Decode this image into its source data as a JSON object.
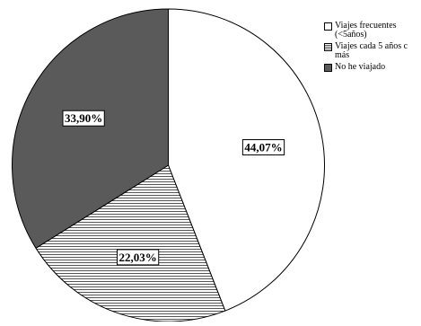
{
  "chart_data": {
    "type": "pie",
    "title": "",
    "start_angle_deg": 0,
    "direction": "clockwise",
    "slices": [
      {
        "label": "Viajes frecuentes (<5años)",
        "value": 44.07,
        "value_label": "44,07%",
        "fill": "#ffffff",
        "pattern": "none"
      },
      {
        "label": "Viajes cada 5 años o más",
        "value": 22.03,
        "value_label": "22,03%",
        "fill": "#ffffff",
        "pattern": "horizontal-lines"
      },
      {
        "label": "No he viajado",
        "value": 33.9,
        "value_label": "33,90%",
        "fill": "#5a5a5a",
        "pattern": "none"
      }
    ],
    "legend_position": "top-right"
  },
  "legend": {
    "items": [
      {
        "label": "Viajes frecuentes (<5años)"
      },
      {
        "label": "Viajes cada 5 años c más"
      },
      {
        "label": "No he viajado"
      }
    ]
  }
}
